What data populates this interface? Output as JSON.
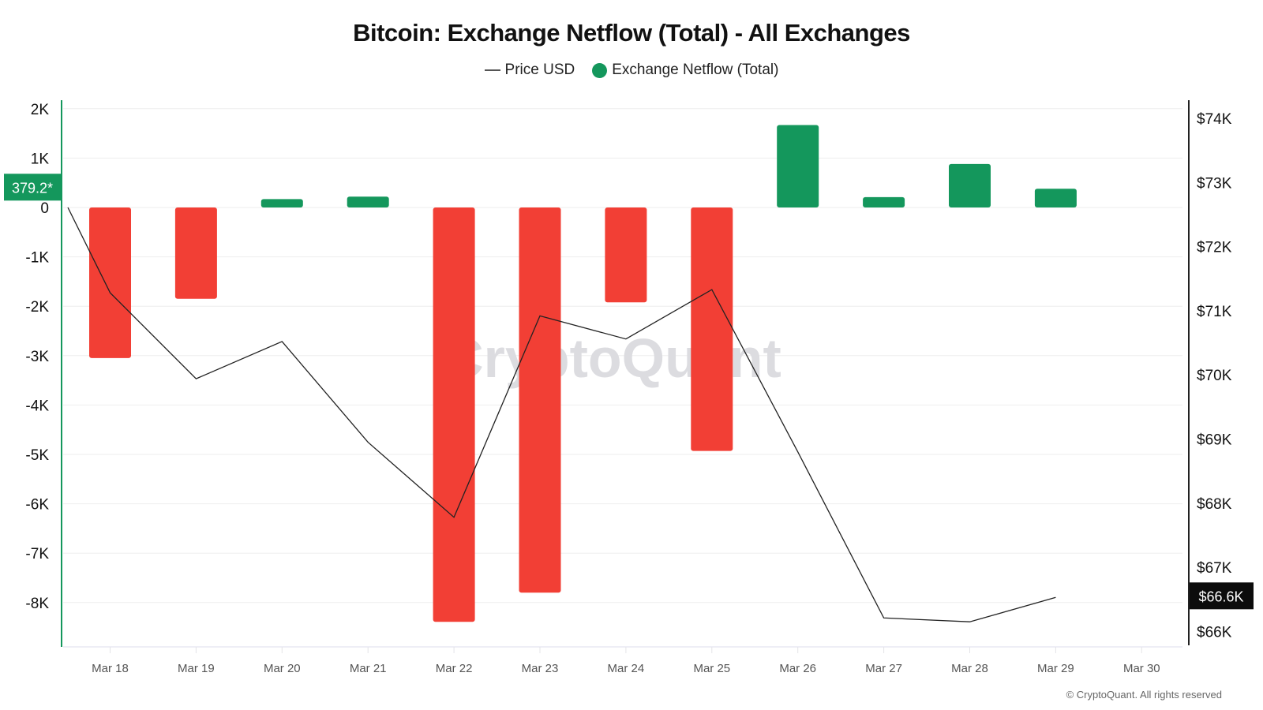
{
  "title": "Bitcoin: Exchange Netflow (Total) - All Exchanges",
  "legend": [
    {
      "label": "Price USD",
      "type": "line",
      "color": "#555555"
    },
    {
      "label": "Exchange Netflow (Total)",
      "type": "dot",
      "color": "#14975c"
    }
  ],
  "watermark": "CryptoQuant",
  "copyright": "© CryptoQuant. All rights reserved",
  "colors": {
    "positive": "#14975c",
    "negative": "#f23f35",
    "price_line": "#222222",
    "left_axis": "#14975c",
    "right_axis": "#222222",
    "grid": "#eeeeee"
  },
  "badges": {
    "left_value": "379.2*",
    "right_value": "$66.6K"
  },
  "chart_data": {
    "type": "bar",
    "title": "Bitcoin: Exchange Netflow (Total) - All Exchanges",
    "xlabel": "",
    "ylabel": "Exchange Netflow (Total)",
    "y2label": "Price USD",
    "categories": [
      "Mar 18",
      "Mar 19",
      "Mar 20",
      "Mar 21",
      "Mar 22",
      "Mar 23",
      "Mar 24",
      "Mar 25",
      "Mar 26",
      "Mar 27",
      "Mar 28",
      "Mar 29",
      "Mar 30"
    ],
    "x_tick_labels": [
      "Mar 18",
      "Mar 19",
      "Mar 20",
      "Mar 21",
      "Mar 22",
      "Mar 23",
      "Mar 24",
      "Mar 25",
      "Mar 26",
      "Mar 27",
      "Mar 28",
      "Mar 29",
      "Mar 30"
    ],
    "series": [
      {
        "name": "Exchange Netflow (Total)",
        "type": "bar",
        "axis": "left",
        "values": [
          -3050,
          -1850,
          170,
          220,
          -8390,
          -7800,
          -1920,
          -4930,
          1670,
          210,
          880,
          379.2,
          null
        ]
      },
      {
        "name": "Price USD",
        "type": "line",
        "axis": "right",
        "x": [
          "Mar 17.5",
          "Mar 18",
          "Mar 19",
          "Mar 20",
          "Mar 21",
          "Mar 22",
          "Mar 23",
          "Mar 24",
          "Mar 25",
          "Mar 26",
          "Mar 27",
          "Mar 28",
          "Mar 29"
        ],
        "values": [
          72610,
          71280,
          69940,
          70520,
          68950,
          67780,
          70920,
          70560,
          71330,
          68800,
          66210,
          66150,
          66530
        ]
      }
    ],
    "y_left": {
      "ticks": [
        "2K",
        "1K",
        "0",
        "-1K",
        "-2K",
        "-3K",
        "-4K",
        "-5K",
        "-6K",
        "-7K",
        "-8K"
      ],
      "range": [
        -8900,
        2100
      ]
    },
    "y_right": {
      "ticks": [
        "$74K",
        "$73K",
        "$72K",
        "$71K",
        "$70K",
        "$69K",
        "$68K",
        "$67K",
        "$66K"
      ],
      "range": [
        66000,
        74000
      ]
    },
    "current_values": {
      "netflow": "379.2*",
      "price": "$66.6K"
    },
    "grid": true,
    "legend_position": "top"
  }
}
